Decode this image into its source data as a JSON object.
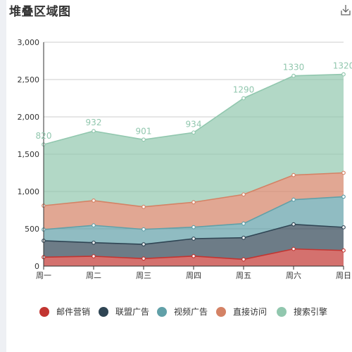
{
  "chart_data": {
    "type": "area",
    "stacked": true,
    "title": "堆叠区域图",
    "categories": [
      "周一",
      "周二",
      "周三",
      "周四",
      "周五",
      "周六",
      "周日"
    ],
    "ylim": [
      0,
      3000
    ],
    "yticks": [
      0,
      500,
      1000,
      1500,
      2000,
      2500,
      3000
    ],
    "ytick_labels": [
      "0",
      "500",
      "1,000",
      "1,500",
      "2,000",
      "2,500",
      "3,000"
    ],
    "grid": true,
    "legend_position": "bottom",
    "series": [
      {
        "name": "邮件营销",
        "color": "#c23531",
        "values": [
          120,
          132,
          101,
          134,
          90,
          230,
          210
        ]
      },
      {
        "name": "联盟广告",
        "color": "#2f4554",
        "values": [
          220,
          182,
          191,
          234,
          290,
          330,
          310
        ]
      },
      {
        "name": "视频广告",
        "color": "#61a0a8",
        "values": [
          150,
          232,
          201,
          154,
          190,
          330,
          410
        ]
      },
      {
        "name": "直接访问",
        "color": "#d48265",
        "values": [
          320,
          332,
          301,
          334,
          390,
          330,
          320
        ]
      },
      {
        "name": "搜索引擎",
        "color": "#91c7ae",
        "values": [
          820,
          932,
          901,
          934,
          1290,
          1330,
          1320
        ]
      }
    ],
    "data_labels": {
      "series": "搜索引擎",
      "values": [
        "820",
        "932",
        "901",
        "934",
        "1290",
        "1330",
        "1320"
      ]
    }
  },
  "toolbar": {
    "save_icon": "download-icon"
  }
}
